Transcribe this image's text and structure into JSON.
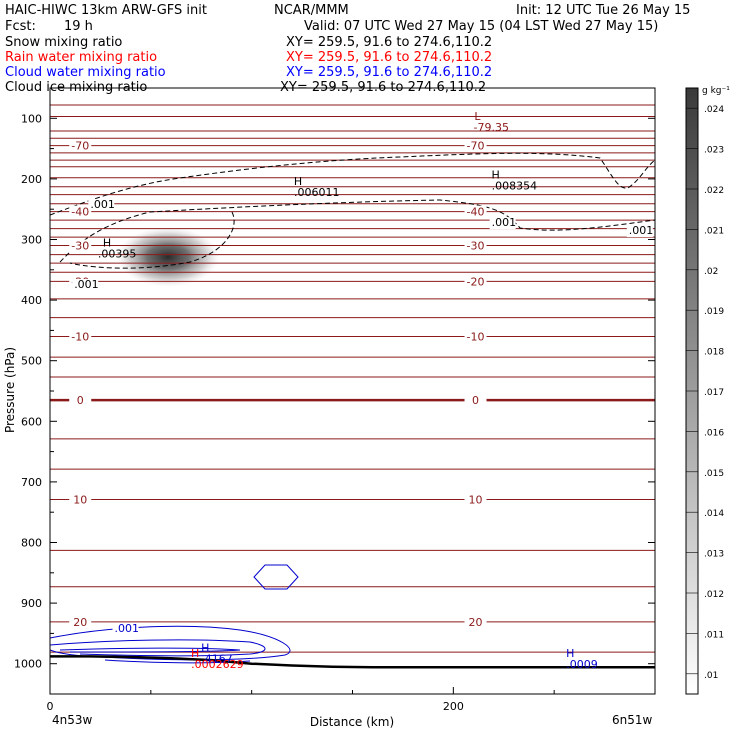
{
  "header": {
    "model": "HAIC-HIWC 13km ARW-GFS init",
    "org": "NCAR/MMM",
    "init": "Init: 12 UTC Tue 26 May 15",
    "fcst_label": "Fcst:",
    "fcst_value": "19 h",
    "valid": "Valid: 07 UTC Wed 27 May 15 (04 LST Wed 27 May 15)"
  },
  "fields": [
    {
      "name": "Snow mixing ratio",
      "xy": "XY= 259.5, 91.6 to 274.6,110.2",
      "color": "#000000"
    },
    {
      "name": "Rain water mixing ratio",
      "xy": "XY= 259.5, 91.6 to 274.6,110.2",
      "color": "#ff0000"
    },
    {
      "name": "Cloud water mixing ratio",
      "xy": "XY= 259.5, 91.6 to 274.6,110.2",
      "color": "#0000ff"
    },
    {
      "name": "Cloud ice mixing ratio",
      "xy": "XY= 259.5, 91.6 to 274.6,110.2",
      "color": "#000000"
    }
  ],
  "colors": {
    "temp_contour": "#8b1a1a",
    "cloud_water": "#0000cc",
    "rain": "#ff0000",
    "ground": "#000000"
  },
  "chart_data": {
    "type": "cross-section",
    "ylabel": "Pressure (hPa)",
    "xlabel": "Distance (km)",
    "x_range": [
      0,
      300
    ],
    "y_range": [
      50,
      1050
    ],
    "y_scale": "linear-inverted",
    "x_ticks": [
      {
        "v": 0,
        "label": "0"
      },
      {
        "v": 200,
        "label": "200"
      }
    ],
    "y_ticks": [
      {
        "v": 100,
        "label": "100"
      },
      {
        "v": 200,
        "label": "200"
      },
      {
        "v": 300,
        "label": "300"
      },
      {
        "v": 400,
        "label": "400"
      },
      {
        "v": 500,
        "label": "500"
      },
      {
        "v": 600,
        "label": "600"
      },
      {
        "v": 700,
        "label": "700"
      },
      {
        "v": 800,
        "label": "800"
      },
      {
        "v": 900,
        "label": "900"
      },
      {
        "v": 1000,
        "label": "1000"
      }
    ],
    "x_end_labels": {
      "left": "4n53w",
      "right": "6n51w"
    },
    "isotherms": [
      {
        "p": 78,
        "label": ""
      },
      {
        "p": 97,
        "label": ""
      },
      {
        "p": 121,
        "label": ""
      },
      {
        "p": 133,
        "label": ""
      },
      {
        "p": 145,
        "label": "-70"
      },
      {
        "p": 157,
        "label": ""
      },
      {
        "p": 169,
        "label": ""
      },
      {
        "p": 180,
        "label": ""
      },
      {
        "p": 198,
        "label": ""
      },
      {
        "p": 213,
        "label": ""
      },
      {
        "p": 226,
        "label": ""
      },
      {
        "p": 241,
        "label": ""
      },
      {
        "p": 254,
        "label": "-40"
      },
      {
        "p": 268,
        "label": ""
      },
      {
        "p": 282,
        "label": ""
      },
      {
        "p": 296,
        "label": ""
      },
      {
        "p": 310,
        "label": "-30"
      },
      {
        "p": 325,
        "label": ""
      },
      {
        "p": 339,
        "label": ""
      },
      {
        "p": 354,
        "label": ""
      },
      {
        "p": 369,
        "label": "-20"
      },
      {
        "p": 398,
        "label": ""
      },
      {
        "p": 429,
        "label": ""
      },
      {
        "p": 460,
        "label": "-10"
      },
      {
        "p": 494,
        "label": ""
      },
      {
        "p": 527,
        "label": ""
      },
      {
        "p": 565,
        "label": "0"
      },
      {
        "p": 629,
        "label": ""
      },
      {
        "p": 679,
        "label": ""
      },
      {
        "p": 729,
        "label": "10"
      },
      {
        "p": 813,
        "label": ""
      },
      {
        "p": 873,
        "label": ""
      },
      {
        "p": 931,
        "label": "20"
      },
      {
        "p": 981,
        "label": ""
      }
    ],
    "ground_surface": {
      "x": [
        0,
        20,
        40,
        60,
        80,
        100,
        120,
        140,
        160,
        200,
        250,
        300
      ],
      "p": [
        988,
        988,
        989,
        991,
        994,
        1000,
        1003,
        1005,
        1006,
        1006,
        1006,
        1006
      ]
    },
    "snow_maximum": {
      "x": 50,
      "p": 335,
      "value": ".00395",
      "marker": "H"
    },
    "ice_contour": {
      "level": ".001"
    },
    "annotations": [
      {
        "text": "L",
        "value": "-79.35",
        "x": 210,
        "p": 103,
        "color": "#8b1a1a"
      },
      {
        "text": "H",
        "value": ".006011",
        "x": 121,
        "p": 210,
        "color": "#000000"
      },
      {
        "text": "H",
        "value": ".008354",
        "x": 219,
        "p": 199,
        "color": "#000000"
      },
      {
        "text": "H",
        "value": ".4167",
        "x": 75,
        "p": 980,
        "color": "#0000cc"
      },
      {
        "text": "H",
        "value": ".0002629",
        "x": 70,
        "p": 989,
        "color": "#ff0000"
      },
      {
        "text": "H",
        "value": ".0009",
        "x": 256,
        "p": 989,
        "color": "#0000cc"
      }
    ],
    "contour_labels": [
      {
        "text": ".001",
        "x": 20,
        "p": 248,
        "color": "#000000"
      },
      {
        "text": ".001",
        "x": 12,
        "p": 380,
        "color": "#000000"
      },
      {
        "text": ".001",
        "x": 219,
        "p": 278,
        "color": "#000000"
      },
      {
        "text": ".001",
        "x": 287,
        "p": 291,
        "color": "#000000"
      },
      {
        "text": ".001",
        "x": 32,
        "p": 948,
        "color": "#0000cc"
      }
    ],
    "colorbar": {
      "unit": "g kg⁻¹",
      "ticks": [
        ".01",
        ".011",
        ".012",
        ".013",
        ".014",
        ".015",
        ".016",
        ".017",
        ".018",
        ".019",
        ".02",
        ".021",
        ".022",
        ".023",
        ".024"
      ],
      "min": 0.0095,
      "max": 0.0245
    }
  }
}
